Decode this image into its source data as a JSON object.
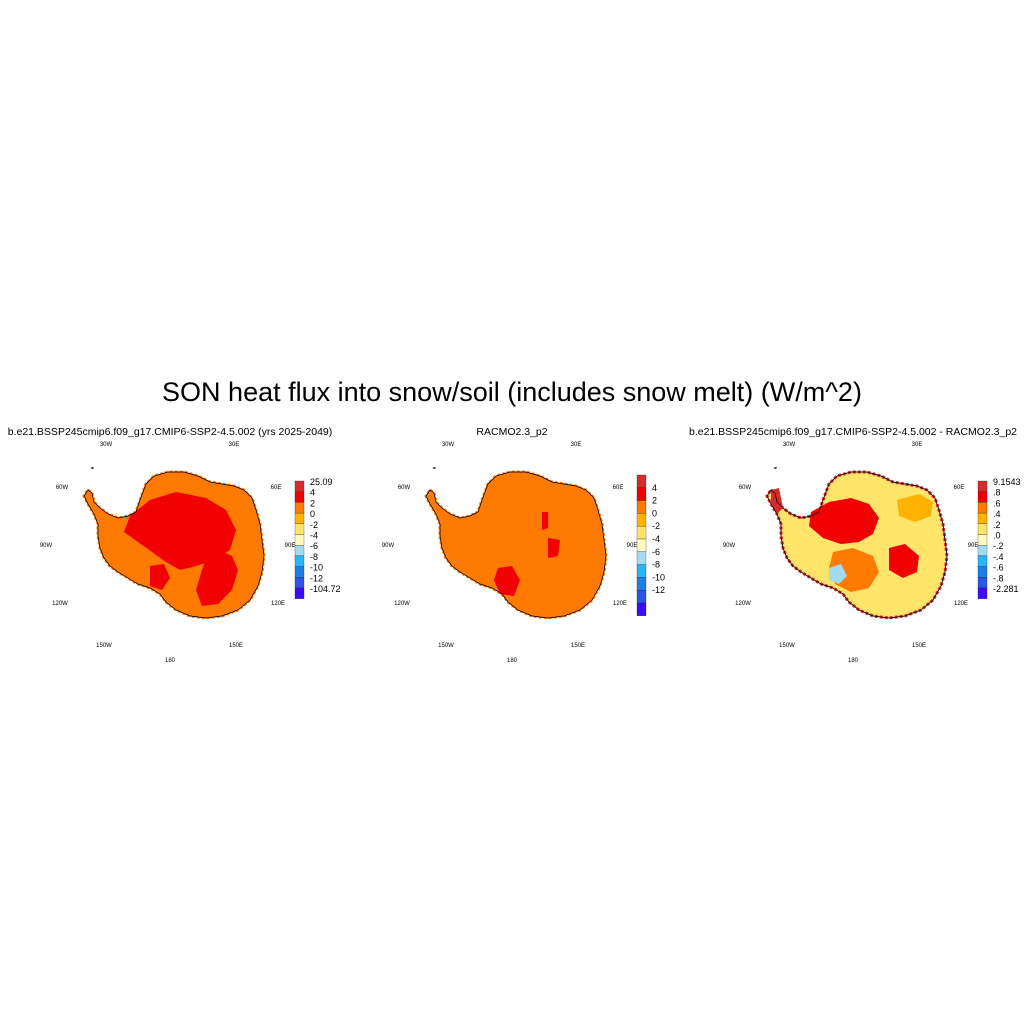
{
  "title": "SON heat flux into snow/soil (includes snow melt) (W/m^2)",
  "colors": {
    "dark_red": "#d42c2c",
    "red": "#f00000",
    "orange": "#ff7a00",
    "amber": "#ffb300",
    "yellow": "#ffe46a",
    "pale_yellow": "#fffabf",
    "light_blue": "#a3dcf0",
    "sky_blue": "#29b6f6",
    "blue": "#1e7ee8",
    "dark_blue": "#2a55e6",
    "violet": "#3b0bff",
    "white": "#ffffff",
    "coastline": "#000000"
  },
  "panels": [
    {
      "id": "model",
      "title": "b.e21.BSSP245cmip6.f09_g17.CMIP6-SSP2-4.5.002 (yrs 2025-2049)",
      "lon_labels": [
        "30W",
        "30E",
        "60W",
        "60E",
        "90W",
        "90E",
        "120W",
        "120E",
        "150W",
        "150E",
        "180"
      ],
      "colorbar": {
        "labels": [
          "25.09",
          "4",
          "2",
          "0",
          "-2",
          "-4",
          "-6",
          "-8",
          "-10",
          "-12",
          "-104.72"
        ],
        "colors": [
          "dark_red",
          "red",
          "orange",
          "amber",
          "yellow",
          "pale_yellow",
          "light_blue",
          "sky_blue",
          "blue",
          "dark_blue",
          "violet"
        ]
      },
      "map": {
        "base": "orange",
        "patches": [
          "red",
          "red",
          "red"
        ]
      }
    },
    {
      "id": "obs",
      "title": "RACMO2.3_p2",
      "lon_labels": [
        "30W",
        "30E",
        "60W",
        "60E",
        "90W",
        "90E",
        "120W",
        "120E",
        "150W",
        "150E",
        "180"
      ],
      "colorbar": {
        "labels": [
          "4",
          "2",
          "0",
          "-2",
          "-4",
          "-6",
          "-8",
          "-10",
          "-12"
        ],
        "colors": [
          "dark_red",
          "red",
          "orange",
          "amber",
          "yellow",
          "pale_yellow",
          "light_blue",
          "sky_blue",
          "blue",
          "dark_blue",
          "violet"
        ]
      },
      "map": {
        "base": "orange",
        "patches": [
          "red",
          "red",
          "red"
        ]
      }
    },
    {
      "id": "diff",
      "title": "b.e21.BSSP245cmip6.f09_g17.CMIP6-SSP2-4.5.002 - RACMO2.3_p2",
      "lon_labels": [
        "30W",
        "30E",
        "60W",
        "60E",
        "90W",
        "90E",
        "120W",
        "120E",
        "150W",
        "150E",
        "180"
      ],
      "colorbar": {
        "labels": [
          "9.1543",
          ".8",
          ".6",
          ".4",
          ".2",
          ".0",
          "-.2",
          "-.4",
          "-.6",
          "-.8",
          "-2.281"
        ],
        "colors": [
          "dark_red",
          "red",
          "orange",
          "amber",
          "yellow",
          "pale_yellow",
          "light_blue",
          "sky_blue",
          "blue",
          "dark_blue",
          "violet"
        ]
      },
      "map": {
        "base": "yellow",
        "patches": [
          "red",
          "red",
          "orange",
          "amber",
          "light_blue",
          "dark_red"
        ]
      }
    }
  ]
}
